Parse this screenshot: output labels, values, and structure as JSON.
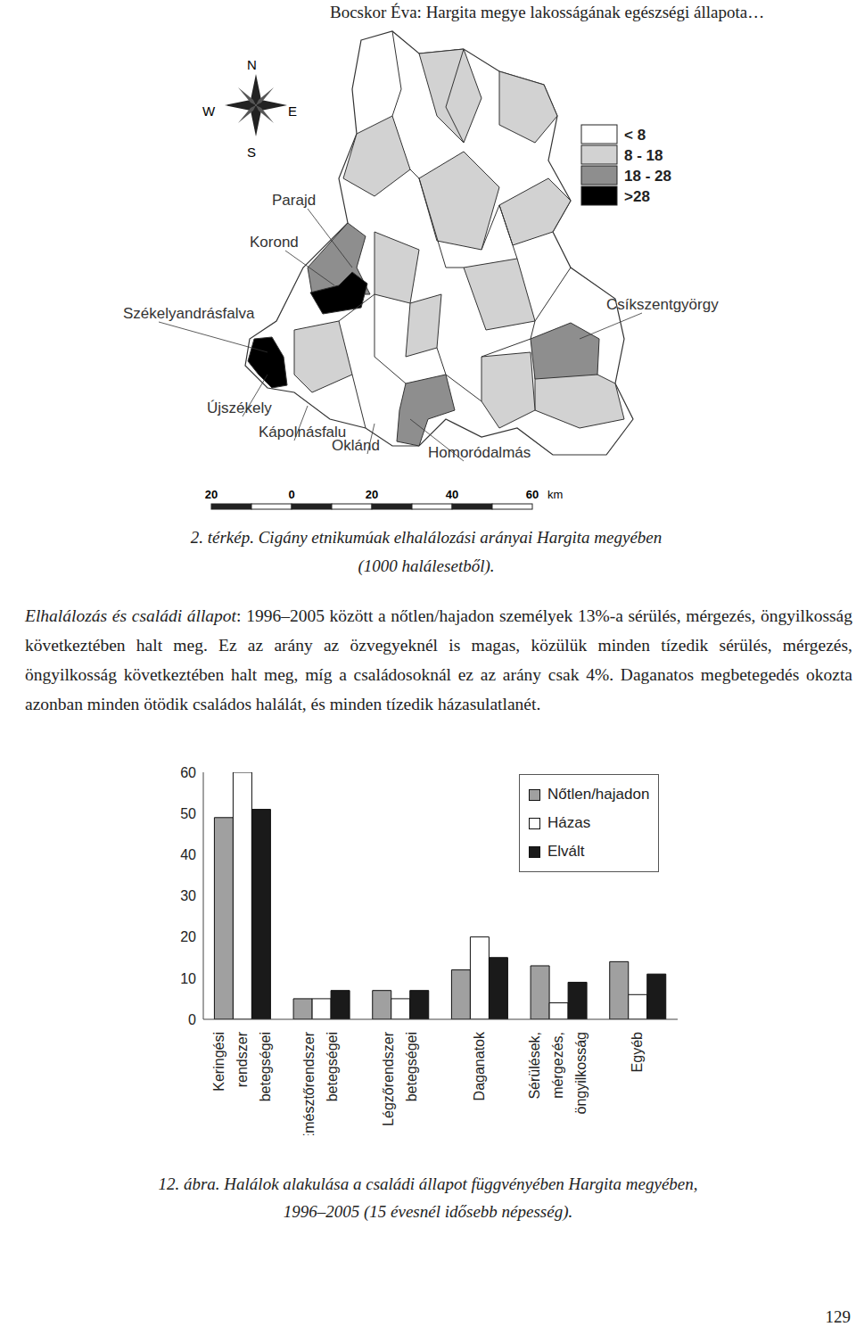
{
  "header": "Bocskor Éva: Hargita megye lakosságának egészségi állapota…",
  "map": {
    "compass": {
      "n": "N",
      "s": "S",
      "w": "W",
      "e": "E"
    },
    "legend": [
      {
        "label": "< 8",
        "color": "#ffffff"
      },
      {
        "label": "8 - 18",
        "color": "#d2d2d2"
      },
      {
        "label": "18 - 28",
        "color": "#8e8e8e"
      },
      {
        "label": ">28",
        "color": "#000000"
      }
    ],
    "places": [
      "Parajd",
      "Korond",
      "Székelyandrásfalva",
      "Csíkszentgyörgy",
      "Újszékely",
      "Kápolnásfalu",
      "Oklánd",
      "Homoródalmás"
    ],
    "scale": {
      "ticks": [
        20,
        0,
        20,
        40,
        60
      ],
      "unit": "km"
    },
    "caption": [
      "2. térkép. Cigány etnikumúak elhalálozási arányai Hargita megyében",
      "(1000 halálesetből)."
    ]
  },
  "paragraph": {
    "lead": "Elhalálozás és családi állapot",
    "text": ": 1996–2005 között a nőtlen/hajadon személyek 13%-a sérülés, mérgezés, öngyilkosság következtében halt meg. Ez az arány az özvegyeknél is magas, közülük minden tízedik sérülés, mérgezés, öngyilkosság következtében halt meg, míg a családosoknál ez az arány csak 4%. Daganatos megbetegedés okozta azonban minden ötödik családos halálát, és minden tízedik házasulatlanét."
  },
  "chart_data": {
    "type": "bar",
    "categories": [
      "Keringési rendszer betegségei",
      "Emésztőrendszer betegségei",
      "Légzőrendszer betegségei",
      "Daganatok",
      "Sérülések, mérgezés, öngyilkosság",
      "Egyéb"
    ],
    "series": [
      {
        "name": "Nőtlen/hajadon",
        "color": "#a0a0a0",
        "values": [
          49,
          5,
          7,
          12,
          13,
          14
        ]
      },
      {
        "name": "Házas",
        "color": "#ffffff",
        "values": [
          60,
          5,
          5,
          20,
          4,
          6
        ]
      },
      {
        "name": "Elvált",
        "color": "#1a1a1a",
        "values": [
          51,
          7,
          7,
          15,
          9,
          11
        ]
      }
    ],
    "ylim": [
      0,
      60
    ],
    "yticks": [
      0,
      10,
      20,
      30,
      40,
      50,
      60
    ],
    "grid": false,
    "legend": "top-right"
  },
  "chart_caption": [
    "12. ábra. Halálok alakulása a családi állapot függvényében Hargita megyében,",
    "1996–2005 (15 évesnél idősebb népesség)."
  ],
  "page_number": "129"
}
